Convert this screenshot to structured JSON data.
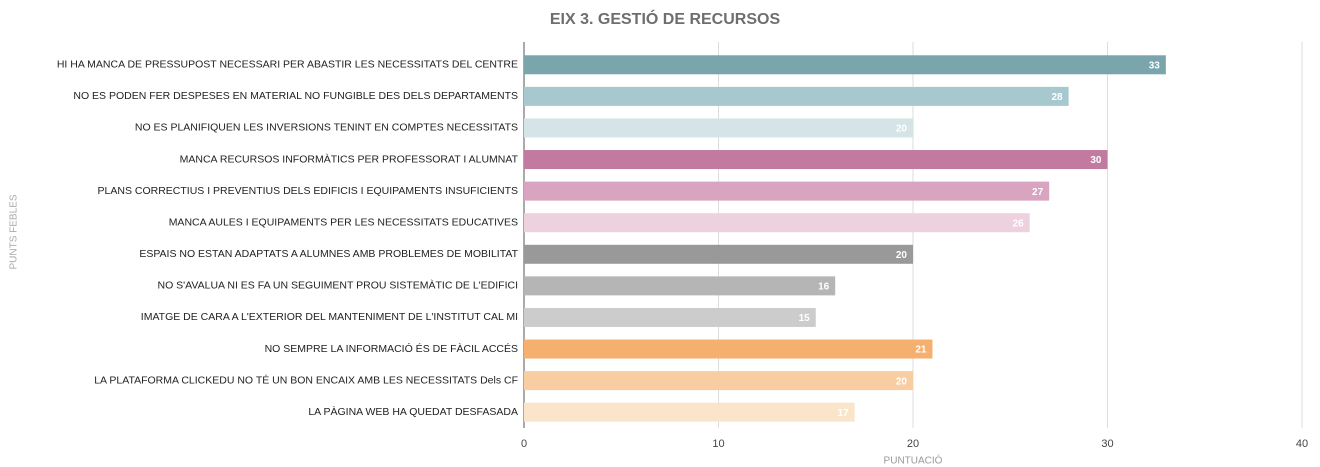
{
  "chart_data": {
    "type": "bar",
    "orientation": "horizontal",
    "title": "EIX 3. GESTIÓ DE RECURSOS",
    "x_label": "PUNTUACIÓ",
    "y_label": "PUNTS FEBLES",
    "categories": [
      "HI HA MANCA DE PRESSUPOST NECESSARI PER ABASTIR LES NECESSITATS DEL CENTRE",
      "NO ES PODEN FER DESPESES EN MATERIAL NO FUNGIBLE DES DELS DEPARTAMENTS",
      "NO ES PLANIFIQUEN LES INVERSIONS TENINT EN COMPTES NECESSITATS",
      "MANCA RECURSOS INFORMÀTICS PER PROFESSORAT I ALUMNAT",
      "PLANS CORRECTIUS I PREVENTIUS DELS EDIFICIS I EQUIPAMENTS INSUFICIENTS",
      "MANCA AULES I EQUIPAMENTS PER LES NECESSITATS EDUCATIVES",
      "ESPAIS NO ESTAN ADAPTATS A ALUMNES AMB PROBLEMES DE MOBILITAT",
      "NO S'AVALUA NI ES FA UN SEGUIMENT PROU SISTEMÀTIC DE L'EDIFICI",
      "IMATGE DE CARA A L'EXTERIOR DEL MANTENIMENT DE L'INSTITUT CAL MI",
      "NO SEMPRE LA INFORMACIÓ ÉS DE FÀCIL ACCÉS",
      "LA PLATAFORMA CLICKEDU NO TÉ UN BON ENCAIX AMB LES NECESSITATS Dels CF",
      "LA PÀGINA WEB HA QUEDAT DESFASADA"
    ],
    "values": [
      33,
      28,
      20,
      30,
      27,
      26,
      20,
      16,
      15,
      21,
      20,
      17
    ],
    "colors": [
      "#7aa5ad",
      "#a7c8cf",
      "#d4e4e7",
      "#c27aa1",
      "#d9a4bf",
      "#edd1df",
      "#999999",
      "#b5b5b5",
      "#cccccc",
      "#f5b06f",
      "#f8cda1",
      "#fbe5ca"
    ],
    "xlim": [
      0,
      40
    ],
    "xticks": [
      0,
      10,
      20,
      30,
      40
    ],
    "grid": true
  }
}
